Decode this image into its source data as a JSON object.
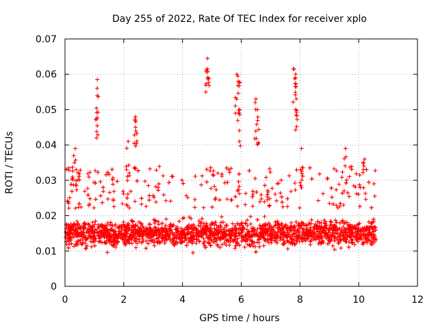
{
  "chart_data": {
    "type": "scatter",
    "title": "Day 255 of 2022, Rate Of TEC Index for receiver xplo",
    "xlabel": "GPS time / hours",
    "ylabel": "ROTI / TECUs",
    "xlim": [
      0,
      12
    ],
    "ylim": [
      0,
      0.07
    ],
    "xticks": [
      0,
      2,
      4,
      6,
      8,
      10,
      12
    ],
    "yticks": [
      0,
      0.01,
      0.02,
      0.03,
      0.04,
      0.05,
      0.06,
      0.07
    ],
    "xtick_labels": [
      "0",
      "2",
      "4",
      "6",
      "8",
      "10",
      "12"
    ],
    "ytick_labels": [
      "0",
      "0.01",
      "0.02",
      "0.03",
      "0.04",
      "0.05",
      "0.06",
      "0.07"
    ],
    "grid": true,
    "marker": "+",
    "color": "#ff0000",
    "data_extent_hours": [
      0,
      10.6
    ],
    "series": [
      {
        "name": "xplo",
        "notable_points": [
          {
            "x": 0.35,
            "y": 0.039
          },
          {
            "x": 1.1,
            "y": 0.0585
          },
          {
            "x": 1.1,
            "y": 0.054
          },
          {
            "x": 2.15,
            "y": 0.041
          },
          {
            "x": 2.4,
            "y": 0.048
          },
          {
            "x": 2.4,
            "y": 0.045
          },
          {
            "x": 4.85,
            "y": 0.0645
          },
          {
            "x": 4.85,
            "y": 0.0615
          },
          {
            "x": 5.85,
            "y": 0.06
          },
          {
            "x": 5.9,
            "y": 0.058
          },
          {
            "x": 5.95,
            "y": 0.05
          },
          {
            "x": 6.5,
            "y": 0.053
          },
          {
            "x": 6.55,
            "y": 0.05
          },
          {
            "x": 7.8,
            "y": 0.0615
          },
          {
            "x": 7.85,
            "y": 0.059
          },
          {
            "x": 7.85,
            "y": 0.05
          },
          {
            "x": 8.05,
            "y": 0.039
          },
          {
            "x": 9.55,
            "y": 0.039
          },
          {
            "x": 10.2,
            "y": 0.036
          }
        ]
      }
    ]
  }
}
